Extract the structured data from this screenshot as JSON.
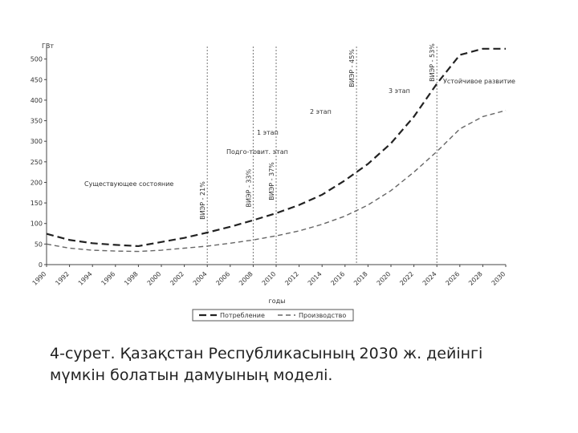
{
  "chart_data": {
    "type": "line",
    "y_label": "ГВт",
    "x_label": "годы",
    "x": [
      1990,
      1992,
      1994,
      1996,
      1998,
      2000,
      2002,
      2004,
      2006,
      2008,
      2010,
      2012,
      2014,
      2016,
      2018,
      2020,
      2022,
      2024,
      2026,
      2028,
      2030
    ],
    "series": [
      {
        "name": "Потребление",
        "color": "#222222",
        "values": [
          75,
          60,
          52,
          48,
          45,
          55,
          65,
          78,
          92,
          108,
          125,
          145,
          170,
          205,
          245,
          295,
          360,
          440,
          510,
          525,
          525
        ]
      },
      {
        "name": "Производство",
        "color": "#666666",
        "values": [
          50,
          40,
          35,
          33,
          32,
          35,
          40,
          45,
          52,
          60,
          70,
          82,
          98,
          118,
          145,
          180,
          225,
          275,
          330,
          360,
          375
        ]
      }
    ],
    "xlim": [
      1990,
      2030
    ],
    "xticks": [
      1990,
      1992,
      1994,
      1996,
      1998,
      2000,
      2002,
      2004,
      2006,
      2008,
      2010,
      2012,
      2014,
      2016,
      2018,
      2020,
      2022,
      2024,
      2026,
      2028,
      2030
    ],
    "ylim": [
      0,
      550
    ],
    "yticks": [
      0,
      50,
      100,
      150,
      200,
      250,
      300,
      350,
      400,
      450,
      500
    ],
    "markers": [
      {
        "x": 2004,
        "label": "ВИЭР - 21%"
      },
      {
        "x": 2008,
        "label": "ВИЭР - 33%"
      },
      {
        "x": 2010,
        "label": "ВИЭР - 37%"
      },
      {
        "x": 2017,
        "label": "ВИЭР - 45%"
      },
      {
        "x": 2024,
        "label": "ВИЭР - 53%"
      }
    ],
    "annotations": [
      "Существующее состояние",
      "Подго-товит. этап",
      "1 этап",
      "2 этап",
      "3 этап",
      "Устойчивое развитие"
    ]
  },
  "caption": "4-сурет. Қазақстан Республикасының 2030 ж. дейінгі мүмкін болатын дамуының моделі."
}
